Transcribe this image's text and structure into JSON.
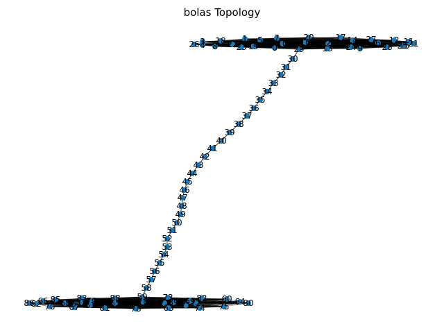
{
  "title": "bolas Topology",
  "colors": {
    "node": "#1f77b4",
    "edge": "#000000",
    "label": "#000000"
  },
  "graph": {
    "chain": [
      "30",
      "31",
      "32",
      "33",
      "34",
      "35",
      "36",
      "37",
      "38",
      "39",
      "40",
      "41",
      "42",
      "43",
      "44",
      "45",
      "46",
      "47",
      "48",
      "49",
      "50",
      "51",
      "52",
      "53",
      "54",
      "55",
      "56",
      "57",
      "58"
    ],
    "top_cluster": [
      "0",
      "1",
      "2",
      "3",
      "4",
      "5",
      "6",
      "7",
      "8",
      "9",
      "10",
      "11",
      "12",
      "13",
      "14",
      "15",
      "16",
      "17",
      "18",
      "19",
      "20",
      "21",
      "22",
      "23",
      "24",
      "25",
      "26",
      "27",
      "28",
      "29"
    ],
    "bottom_cluster": [
      "59",
      "60",
      "61",
      "62",
      "63",
      "64",
      "65",
      "66",
      "67",
      "68",
      "69",
      "70",
      "71",
      "72",
      "73",
      "74",
      "75",
      "76",
      "77",
      "78",
      "79",
      "80",
      "81",
      "82",
      "83",
      "84",
      "85",
      "86",
      "87",
      "88",
      "89"
    ]
  }
}
